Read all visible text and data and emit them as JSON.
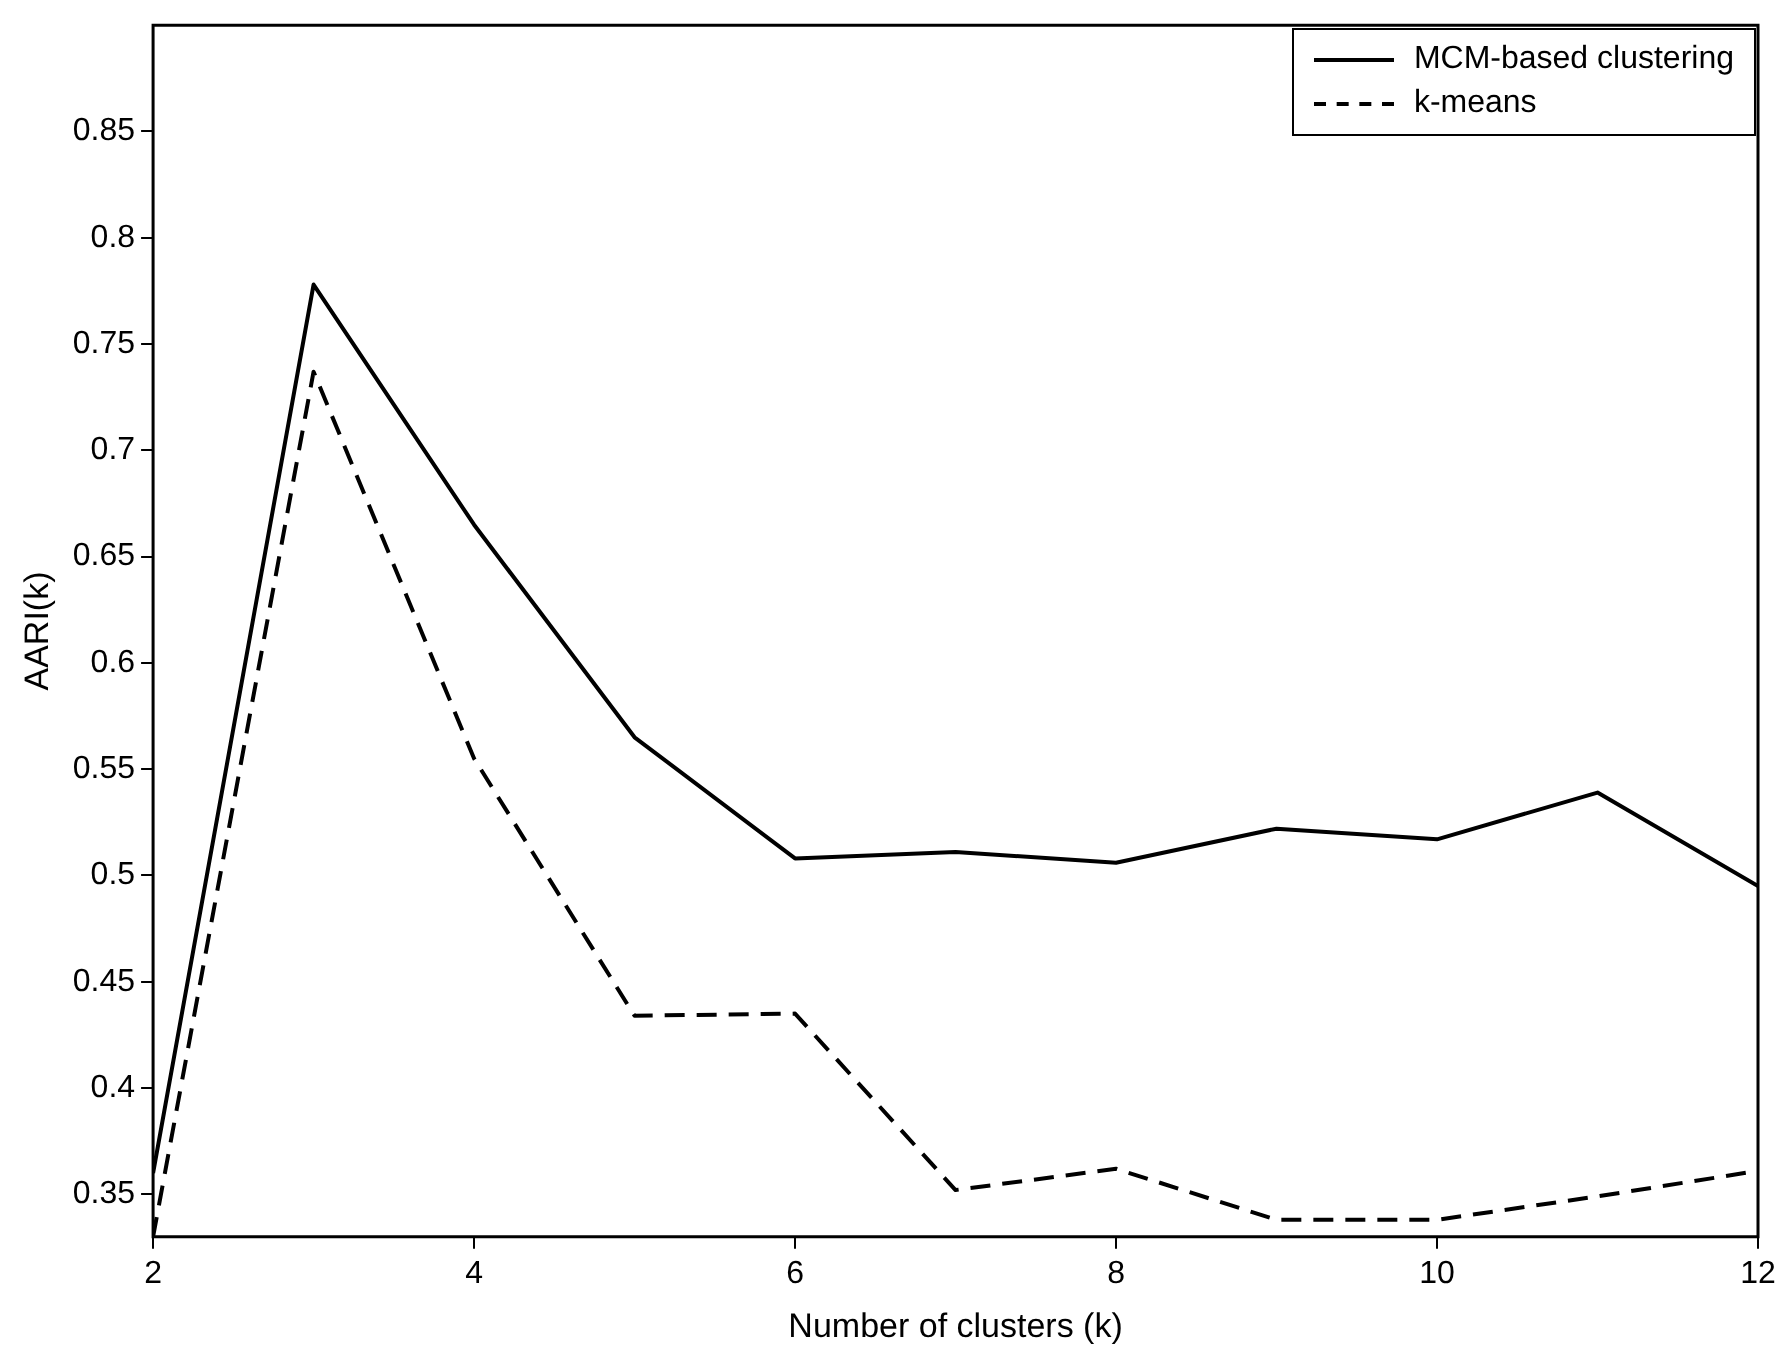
{
  "chart_data": {
    "type": "line",
    "xlabel": "Number of clusters (k)",
    "ylabel": "AARI(k)",
    "x": [
      2,
      3,
      4,
      5,
      6,
      7,
      8,
      9,
      10,
      11,
      12
    ],
    "series": [
      {
        "name": "MCM-based clustering",
        "color": "#000000",
        "line_style": "solid",
        "values": [
          0.36,
          0.778,
          0.665,
          0.565,
          0.508,
          0.511,
          0.506,
          0.522,
          0.517,
          0.539,
          0.495
        ]
      },
      {
        "name": "k-means",
        "color": "#000000",
        "line_style": "dashed",
        "values": [
          0.33,
          0.737,
          0.555,
          0.434,
          0.435,
          0.352,
          0.362,
          0.338,
          0.338,
          0.349,
          0.361
        ]
      }
    ],
    "xlim": [
      2,
      12
    ],
    "xticks": [
      2,
      4,
      6,
      8,
      10,
      12
    ],
    "ylim": [
      0.33,
      0.9
    ],
    "yticks": [
      0.35,
      0.4,
      0.45,
      0.5,
      0.55,
      0.6,
      0.65,
      0.7,
      0.75,
      0.8,
      0.85
    ],
    "grid": false,
    "legend": "top right",
    "marker": "none"
  }
}
